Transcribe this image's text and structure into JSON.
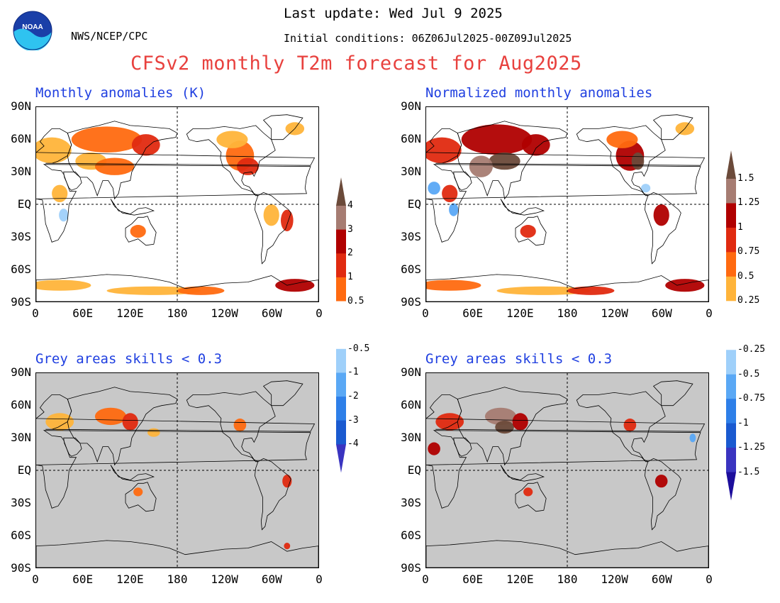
{
  "header": {
    "last_update": "Last update: Wed Jul 9 2025",
    "agency": "NWS/NCEP/CPC",
    "initial_conditions": "Initial conditions: 06Z06Jul2025-00Z09Jul2025",
    "title": "CFSv2 monthly T2m forecast for Aug2025",
    "logo_text": "NOAA"
  },
  "panels": [
    {
      "id": "tl",
      "title": "Monthly anomalies (K)",
      "mode": "anomaly"
    },
    {
      "id": "tr",
      "title": "Normalized monthly anomalies",
      "mode": "normalized"
    },
    {
      "id": "bl",
      "title": "Grey areas skills < 0.3",
      "mode": "masked"
    },
    {
      "id": "br",
      "title": "Grey areas skills < 0.3",
      "mode": "masked-normalized"
    }
  ],
  "lat_labels": [
    "90N",
    "60N",
    "30N",
    "EQ",
    "30S",
    "60S",
    "90S"
  ],
  "lon_labels": [
    "0",
    "60E",
    "120E",
    "180",
    "120W",
    "60W",
    "0"
  ],
  "colorbar_left": {
    "labels_warm": [
      "4",
      "3",
      "2",
      "1",
      "0.5"
    ],
    "labels_cold": [
      "-0.5",
      "-1",
      "-2",
      "-3",
      "-4"
    ]
  },
  "colorbar_right": {
    "labels_warm": [
      "1.5",
      "1.25",
      "1",
      "0.75",
      "0.5",
      "0.25"
    ],
    "labels_cold": [
      "-0.25",
      "-0.5",
      "-0.75",
      "-1",
      "-1.25",
      "-1.5"
    ]
  },
  "colors": {
    "title": "#e8413e",
    "panel_title": "#1f3fe0",
    "warm": [
      "#6b4a3a",
      "#a67c72",
      "#b00000",
      "#e02a10",
      "#ff6a10",
      "#ffb43a"
    ],
    "cold": [
      "#9fd0fa",
      "#5aa8f5",
      "#2e7fe8",
      "#1a5ad0",
      "#3a34c0",
      "#1d0e9c"
    ],
    "neutral": "#ffffff",
    "grey_mask": "#c8c8c8"
  }
}
